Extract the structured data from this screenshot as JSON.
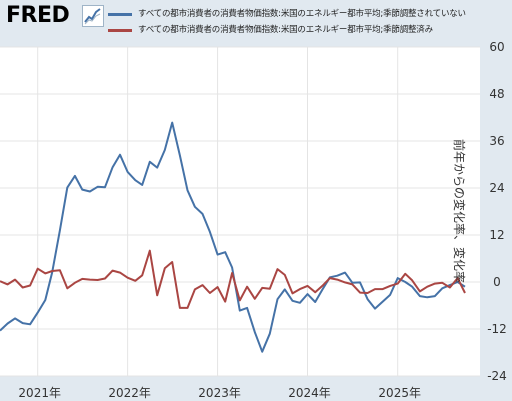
{
  "header": {
    "logo_text": "FRED",
    "logo_icon": "fred-trend-icon"
  },
  "colors": {
    "series_1": "#4572a7",
    "series_2": "#aa4643",
    "plot_bg": "#ffffff",
    "page_bg": "#e1e9f0"
  },
  "chart_data": {
    "type": "line",
    "ylabel": "前年からの変化率、変化率",
    "ylim": [
      -24,
      60
    ],
    "yticks": [
      -24,
      -12,
      0,
      12,
      24,
      36,
      48,
      60
    ],
    "xlim": [
      "2020-08-01",
      "2025-12-01"
    ],
    "xtick_labels": [
      "2021年",
      "2022年",
      "2023年",
      "2024年",
      "2025年"
    ],
    "xtick_dates": [
      "2021-01-01",
      "2022-01-01",
      "2023-01-01",
      "2024-01-01",
      "2025-01-01"
    ],
    "grid": true,
    "series": [
      {
        "name": "すべての都市消費者の消費者物価指数:米国のエネルギー都市平均;季節調整されていない",
        "color": "#4572a7",
        "dates": [
          "2020-08-01",
          "2020-09-01",
          "2020-10-01",
          "2020-11-01",
          "2020-12-01",
          "2021-01-01",
          "2021-02-01",
          "2021-03-01",
          "2021-04-01",
          "2021-05-01",
          "2021-06-01",
          "2021-07-01",
          "2021-08-01",
          "2021-09-01",
          "2021-10-01",
          "2021-11-01",
          "2021-12-01",
          "2022-01-01",
          "2022-02-01",
          "2022-03-01",
          "2022-04-01",
          "2022-05-01",
          "2022-06-01",
          "2022-07-01",
          "2022-08-01",
          "2022-09-01",
          "2022-10-01",
          "2022-11-01",
          "2022-12-01",
          "2023-01-01",
          "2023-02-01",
          "2023-03-01",
          "2023-04-01",
          "2023-05-01",
          "2023-06-01",
          "2023-07-01",
          "2023-08-01",
          "2023-09-01",
          "2023-10-01",
          "2023-11-01",
          "2023-12-01",
          "2024-01-01",
          "2024-02-01",
          "2024-03-01",
          "2024-04-01",
          "2024-05-01",
          "2024-06-01",
          "2024-07-01",
          "2024-08-01",
          "2024-09-01",
          "2024-10-01",
          "2024-11-01",
          "2024-12-01",
          "2025-01-01",
          "2025-02-01",
          "2025-03-01",
          "2025-04-01",
          "2025-05-01",
          "2025-06-01",
          "2025-07-01",
          "2025-08-01",
          "2025-09-01",
          "2025-10-01"
        ],
        "values": [
          -12.4,
          -10.6,
          -9.3,
          -10.5,
          -10.8,
          -7.8,
          -4.6,
          2.5,
          13.2,
          24.1,
          27.1,
          23.6,
          23.1,
          24.3,
          24.2,
          29.3,
          32.5,
          28.1,
          26.0,
          24.8,
          30.7,
          29.2,
          33.7,
          40.7,
          32.3,
          23.4,
          19.2,
          17.4,
          12.8,
          7.0,
          7.6,
          3.7,
          -7.3,
          -6.6,
          -12.8,
          -17.8,
          -13.2,
          -4.4,
          -1.9,
          -4.8,
          -5.3,
          -3.1,
          -5.1,
          -2.0,
          1.2,
          1.6,
          2.4,
          -0.2,
          -0.1,
          -4.4,
          -6.8,
          -5.0,
          -3.3,
          1.0,
          0.0,
          -1.2,
          -3.6,
          -3.9,
          -3.6,
          -1.6,
          -0.8,
          0.0,
          -1.2
        ]
      },
      {
        "name": "すべての都市消費者の消費者物価指数:米国のエネルギー都市平均;季節調整済み",
        "color": "#aa4643",
        "dates": [
          "2020-08-01",
          "2020-09-01",
          "2020-10-01",
          "2020-11-01",
          "2020-12-01",
          "2021-01-01",
          "2021-02-01",
          "2021-03-01",
          "2021-04-01",
          "2021-05-01",
          "2021-06-01",
          "2021-07-01",
          "2021-08-01",
          "2021-09-01",
          "2021-10-01",
          "2021-11-01",
          "2021-12-01",
          "2022-01-01",
          "2022-02-01",
          "2022-03-01",
          "2022-04-01",
          "2022-05-01",
          "2022-06-01",
          "2022-07-01",
          "2022-08-01",
          "2022-09-01",
          "2022-10-01",
          "2022-11-01",
          "2022-12-01",
          "2023-01-01",
          "2023-02-01",
          "2023-03-01",
          "2023-04-01",
          "2023-05-01",
          "2023-06-01",
          "2023-07-01",
          "2023-08-01",
          "2023-09-01",
          "2023-10-01",
          "2023-11-01",
          "2023-12-01",
          "2024-01-01",
          "2024-02-01",
          "2024-03-01",
          "2024-04-01",
          "2024-05-01",
          "2024-06-01",
          "2024-07-01",
          "2024-08-01",
          "2024-09-01",
          "2024-10-01",
          "2024-11-01",
          "2024-12-01",
          "2025-01-01",
          "2025-02-01",
          "2025-03-01",
          "2025-04-01",
          "2025-05-01",
          "2025-06-01",
          "2025-07-01",
          "2025-08-01",
          "2025-09-01",
          "2025-10-01"
        ],
        "values": [
          0.2,
          -0.6,
          0.6,
          -1.4,
          -0.9,
          3.4,
          2.2,
          2.8,
          3.0,
          -1.6,
          -0.2,
          0.8,
          0.6,
          0.5,
          0.9,
          2.9,
          2.4,
          1.1,
          0.3,
          1.7,
          8.0,
          -3.4,
          3.5,
          5.1,
          -6.6,
          -6.6,
          -1.9,
          -0.8,
          -2.8,
          -1.3,
          -5.0,
          2.3,
          -4.7,
          -1.2,
          -4.3,
          -1.5,
          -1.7,
          3.3,
          1.8,
          -2.9,
          -1.8,
          -1.0,
          -2.6,
          -1.0,
          1.0,
          0.6,
          -0.1,
          -0.6,
          -2.7,
          -2.8,
          -1.8,
          -1.8,
          -1.0,
          -0.4,
          2.1,
          0.4,
          -2.4,
          -1.2,
          -0.4,
          -0.2,
          -1.4,
          1.0,
          -2.8
        ]
      }
    ]
  }
}
